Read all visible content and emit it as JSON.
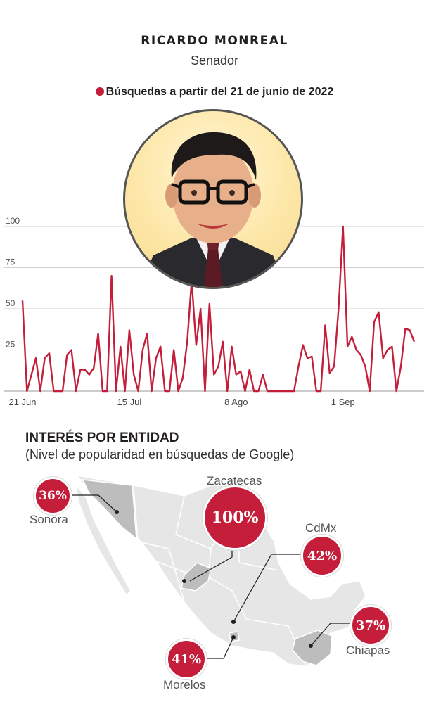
{
  "header": {
    "name": "RICARDO MONREAL",
    "role": "Senador",
    "legend": "Búsquedas a partir del 21 de junio de 2022",
    "accent": "#c41e3a"
  },
  "chart_data": {
    "type": "line",
    "title": "Búsquedas a partir del 21 de junio de 2022",
    "xlabel": "",
    "ylabel": "",
    "ylim": [
      0,
      100
    ],
    "y_ticks": [
      25,
      50,
      75,
      100
    ],
    "x_tick_labels": [
      {
        "label": "21 Jun",
        "index": 0
      },
      {
        "label": "15 Jul",
        "index": 24
      },
      {
        "label": "8 Ago",
        "index": 48
      },
      {
        "label": "1 Sep",
        "index": 72
      }
    ],
    "grid": true,
    "series": [
      {
        "color": "#c41e3a",
        "values": [
          55,
          0,
          10,
          20,
          0,
          20,
          23,
          0,
          0,
          0,
          22,
          25,
          0,
          13,
          13,
          10,
          14,
          35,
          0,
          0,
          70,
          0,
          27,
          0,
          37,
          10,
          0,
          25,
          35,
          0,
          20,
          27,
          0,
          0,
          25,
          0,
          8,
          30,
          67,
          28,
          50,
          0,
          53,
          10,
          15,
          30,
          0,
          27,
          10,
          12,
          0,
          13,
          0,
          0,
          10,
          0,
          0,
          0,
          0,
          0,
          0,
          0,
          15,
          28,
          20,
          21,
          0,
          0,
          40,
          11,
          15,
          50,
          100,
          27,
          33,
          25,
          22,
          15,
          0,
          42,
          48,
          20,
          25,
          27,
          0,
          15,
          38,
          37,
          30
        ]
      }
    ]
  },
  "map": {
    "title": "INTERÉS POR ENTIDAD",
    "subtitle": "(Nivel de popularidad en búsquedas de Google)",
    "states": [
      {
        "name": "Sonora",
        "value": "36%"
      },
      {
        "name": "Zacatecas",
        "value": "100%"
      },
      {
        "name": "CdMx",
        "value": "42%"
      },
      {
        "name": "Morelos",
        "value": "41%"
      },
      {
        "name": "Chiapas",
        "value": "37%"
      }
    ]
  }
}
